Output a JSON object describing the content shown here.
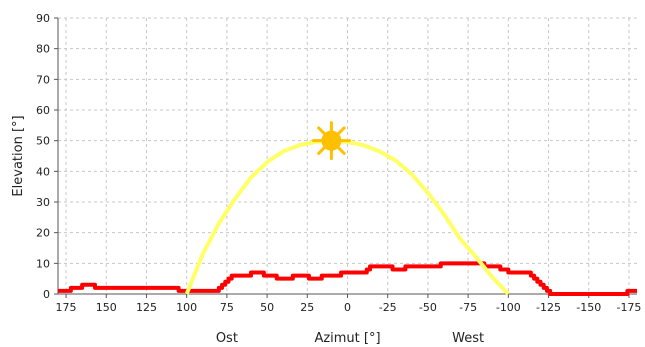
{
  "chart_data": {
    "type": "line",
    "xlabel": "Azimut [°]",
    "ylabel": "Elevation [°]",
    "x_direction_labels": [
      {
        "text": "Ost",
        "azimuth": 75
      },
      {
        "text": "West",
        "azimuth": -75
      }
    ],
    "xlim": [
      180,
      -180
    ],
    "ylim": [
      0,
      90
    ],
    "x_ticks": [
      175,
      150,
      125,
      100,
      75,
      50,
      25,
      0,
      -25,
      -50,
      -75,
      -100,
      -125,
      -150,
      -175
    ],
    "y_ticks": [
      0,
      10,
      20,
      30,
      40,
      50,
      60,
      70,
      80,
      90
    ],
    "grid": true,
    "sun": {
      "azimuth": 10,
      "elevation": 50,
      "color": "#ffc000"
    },
    "series": [
      {
        "style": "step",
        "color": "#ff0000",
        "points": [
          [
            180,
            1
          ],
          [
            175,
            1
          ],
          [
            172,
            2
          ],
          [
            168,
            2
          ],
          [
            165,
            3
          ],
          [
            160,
            3
          ],
          [
            157,
            2
          ],
          [
            110,
            2
          ],
          [
            105,
            1
          ],
          [
            82,
            1
          ],
          [
            80,
            2
          ],
          [
            78,
            3
          ],
          [
            76,
            4
          ],
          [
            74,
            5
          ],
          [
            72,
            6
          ],
          [
            62,
            6
          ],
          [
            60,
            7
          ],
          [
            55,
            7
          ],
          [
            52,
            6
          ],
          [
            46,
            6
          ],
          [
            44,
            5
          ],
          [
            36,
            5
          ],
          [
            34,
            6
          ],
          [
            26,
            6
          ],
          [
            24,
            5
          ],
          [
            18,
            5
          ],
          [
            16,
            6
          ],
          [
            6,
            6
          ],
          [
            4,
            7
          ],
          [
            -10,
            7
          ],
          [
            -12,
            8
          ],
          [
            -14,
            9
          ],
          [
            -26,
            9
          ],
          [
            -28,
            8
          ],
          [
            -34,
            8
          ],
          [
            -36,
            9
          ],
          [
            -56,
            9
          ],
          [
            -58,
            10
          ],
          [
            -83,
            10
          ],
          [
            -85,
            9
          ],
          [
            -93,
            9
          ],
          [
            -95,
            8
          ],
          [
            -100,
            7
          ],
          [
            -112,
            7
          ],
          [
            -114,
            6
          ],
          [
            -116,
            5
          ],
          [
            -118,
            4
          ],
          [
            -120,
            3
          ],
          [
            -122,
            2
          ],
          [
            -124,
            1
          ],
          [
            -126,
            0
          ],
          [
            -172,
            0
          ],
          [
            -174,
            1
          ],
          [
            -180,
            1
          ]
        ]
      },
      {
        "style": "smooth",
        "color": "#ffff66",
        "points": [
          [
            100,
            0
          ],
          [
            90,
            13
          ],
          [
            80,
            23
          ],
          [
            70,
            31
          ],
          [
            60,
            38
          ],
          [
            50,
            43
          ],
          [
            40,
            46.5
          ],
          [
            30,
            48.5
          ],
          [
            20,
            49.6
          ],
          [
            10,
            50
          ],
          [
            0,
            49.6
          ],
          [
            -10,
            48.5
          ],
          [
            -20,
            46.5
          ],
          [
            -30,
            43.5
          ],
          [
            -40,
            39
          ],
          [
            -50,
            33
          ],
          [
            -60,
            26
          ],
          [
            -70,
            18
          ],
          [
            -80,
            12
          ],
          [
            -90,
            5.5
          ],
          [
            -100,
            0
          ]
        ]
      }
    ]
  }
}
